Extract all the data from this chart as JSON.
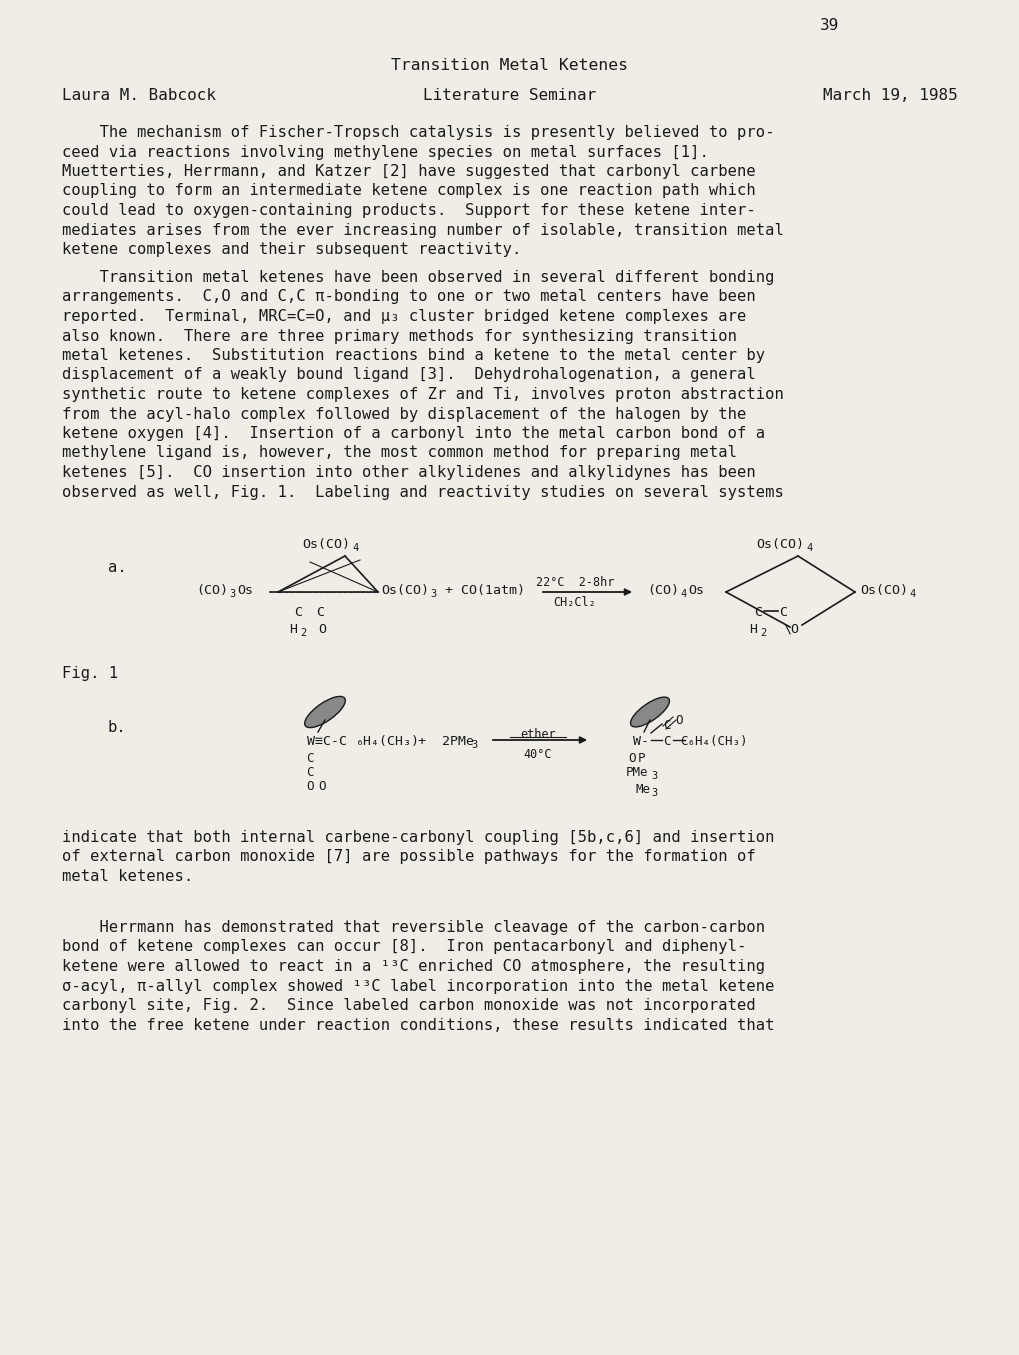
{
  "page_number": "39",
  "title": "Transition Metal Ketenes",
  "author": "Laura M. Babcock",
  "seminar": "Literature Seminar",
  "date": "March 19, 1985",
  "background_color": "#f0ede6",
  "text_color": "#1a1a1a",
  "para1_lines": [
    "    The mechanism of Fischer-Tropsch catalysis is presently believed to pro-",
    "ceed via reactions involving methylene species on metal surfaces [1].",
    "Muetterties, Herrmann, and Katzer [2] have suggested that carbonyl carbene",
    "coupling to form an intermediate ketene complex is one reaction path which",
    "could lead to oxygen-containing products.  Support for these ketene inter-",
    "mediates arises from the ever increasing number of isolable, transition metal",
    "ketene complexes and their subsequent reactivity."
  ],
  "para2_lines": [
    "    Transition metal ketenes have been observed in several different bonding",
    "arrangements.  C,O and C,C π-bonding to one or two metal centers have been",
    "reported.  Terminal, MRC=C=O, and μ₃ cluster bridged ketene complexes are",
    "also known.  There are three primary methods for synthesizing transition",
    "metal ketenes.  Substitution reactions bind a ketene to the metal center by",
    "displacement of a weakly bound ligand [3].  Dehydrohalogenation, a general",
    "synthetic route to ketene complexes of Zr and Ti, involves proton abstraction",
    "from the acyl-halo complex followed by displacement of the halogen by the",
    "ketene oxygen [4].  Insertion of a carbonyl into the metal carbon bond of a",
    "methylene ligand is, however, the most common method for preparing metal",
    "ketenes [5].  CO insertion into other alkylidenes and alkylidynes has been",
    "observed as well, Fig. 1.  Labeling and reactivity studies on several systems"
  ],
  "fig1_label": "Fig. 1",
  "para3_lines": [
    "indicate that both internal carbene-carbonyl coupling [5b,c,6] and insertion",
    "of external carbon monoxide [7] are possible pathways for the formation of",
    "metal ketenes."
  ],
  "para4_lines": [
    "    Herrmann has demonstrated that reversible cleavage of the carbon-carbon",
    "bond of ketene complexes can occur [8].  Iron pentacarbonyl and diphenyl-",
    "ketene were allowed to react in a ¹³C enriched CO atmosphere, the resulting",
    "σ-acyl, π-allyl complex showed ¹³C label incorporation into the metal ketene",
    "carbonyl site, Fig. 2.  Since labeled carbon monoxide was not incorporated",
    "into the free ketene under reaction conditions, these results indicated that"
  ]
}
